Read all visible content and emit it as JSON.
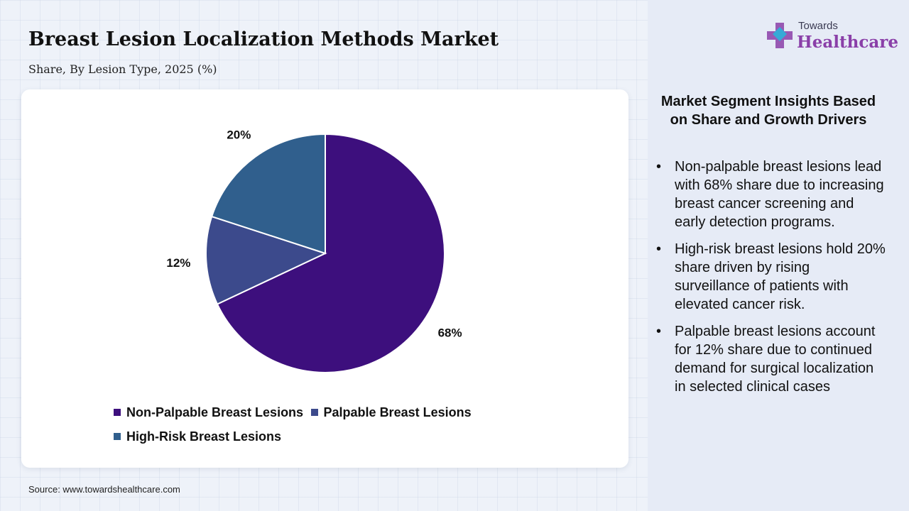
{
  "header": {
    "title": "Breast Lesion Localization Methods Market",
    "subtitle": "Share, By Lesion Type, 2025 (%)"
  },
  "chart_data": {
    "type": "pie",
    "categories": [
      "Non-Palpable Breast Lesions",
      "Palpable Breast Lesions",
      "High-Risk Breast Lesions"
    ],
    "values": [
      68,
      12,
      20
    ],
    "data_labels": [
      "68%",
      "12%",
      "20%"
    ],
    "colors": [
      "#3d0f7d",
      "#3c4a8c",
      "#305f8d"
    ],
    "start": "12 o'clock, clockwise",
    "legend_position": "bottom"
  },
  "source": "Source: www.towardshealthcare.com",
  "logo": {
    "small": "Towards",
    "big": "Healthcare"
  },
  "insights": {
    "title": "Market Segment Insights Based on Share and Growth Drivers",
    "bullets": [
      "Non-palpable breast lesions lead with 68% share due to increasing breast cancer screening and early detection programs.",
      "High-risk breast lesions hold 20% share driven by rising surveillance of patients with elevated cancer risk.",
      "Palpable breast lesions account for 12% share due to continued demand for surgical localization in selected clinical cases"
    ]
  }
}
